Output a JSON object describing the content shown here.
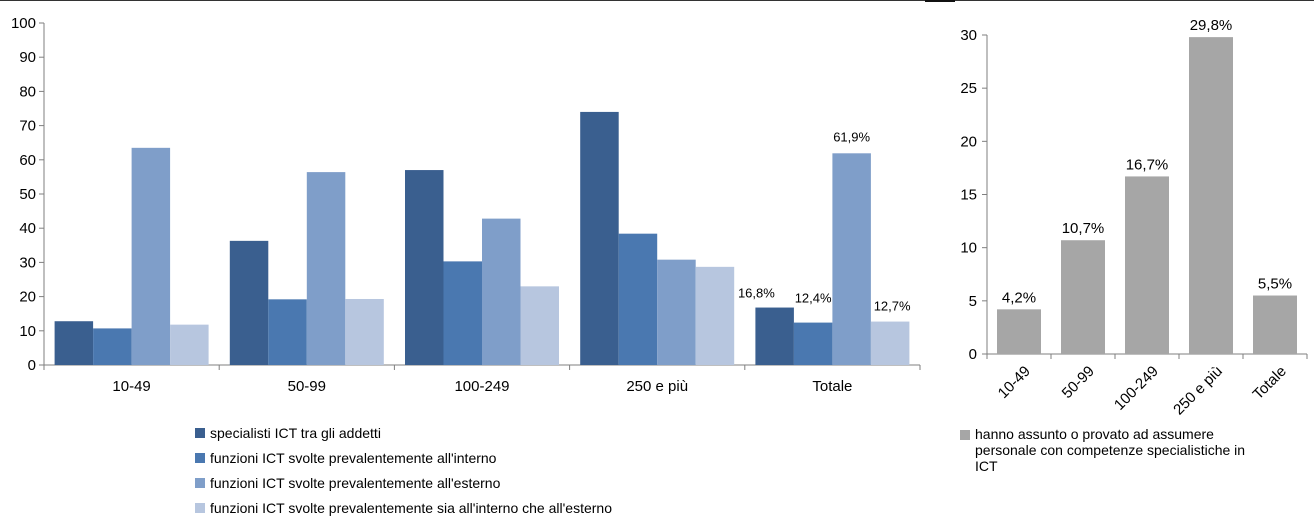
{
  "chart_data": [
    {
      "type": "bar",
      "categories": [
        "10-49",
        "50-99",
        "100-249",
        "250 e più",
        "Totale"
      ],
      "ylim": [
        0,
        100
      ],
      "yticks": [
        "0",
        "10",
        "20",
        "30",
        "40",
        "50",
        "60",
        "70",
        "80",
        "90",
        "100"
      ],
      "grid": false,
      "legend_position": "bottom",
      "series": [
        {
          "name": "specialisti ICT tra gli addetti",
          "color": "#3A5F8F",
          "values": [
            12.8,
            36.3,
            57.0,
            74.0,
            16.8
          ],
          "labels": [
            "",
            "",
            "",
            "",
            "16,8%"
          ]
        },
        {
          "name": "funzioni ICT svolte prevalentemente all'interno",
          "color": "#4A78B0",
          "values": [
            10.7,
            19.2,
            30.3,
            38.4,
            12.4
          ],
          "labels": [
            "",
            "",
            "",
            "",
            "12,4%"
          ]
        },
        {
          "name": "funzioni ICT svolte prevalentemente all'esterno",
          "color": "#7F9EC9",
          "values": [
            63.5,
            56.4,
            42.8,
            30.8,
            61.9
          ],
          "labels": [
            "",
            "",
            "",
            "",
            "61,9%"
          ]
        },
        {
          "name": "funzioni ICT svolte prevalentemente sia all'interno che all'esterno",
          "color": "#B7C6DF",
          "values": [
            11.8,
            19.3,
            23.0,
            28.7,
            12.7
          ],
          "labels": [
            "",
            "",
            "",
            "",
            "12,7%"
          ]
        }
      ]
    },
    {
      "type": "bar",
      "categories": [
        "10-49",
        "50-99",
        "100-249",
        "250 e più",
        "Totale"
      ],
      "ylim": [
        0,
        30
      ],
      "yticks": [
        "0",
        "5",
        "10",
        "15",
        "20",
        "25",
        "30"
      ],
      "grid": false,
      "legend_position": "bottom",
      "series": [
        {
          "name": "hanno assunto o provato ad assumere personale con competenze specialistiche in ICT",
          "color": "#A6A6A6",
          "values": [
            4.2,
            10.7,
            16.7,
            29.8,
            5.5
          ],
          "labels": [
            "4,2%",
            "10,7%",
            "16,7%",
            "29,8%",
            "5,5%"
          ]
        }
      ]
    }
  ]
}
